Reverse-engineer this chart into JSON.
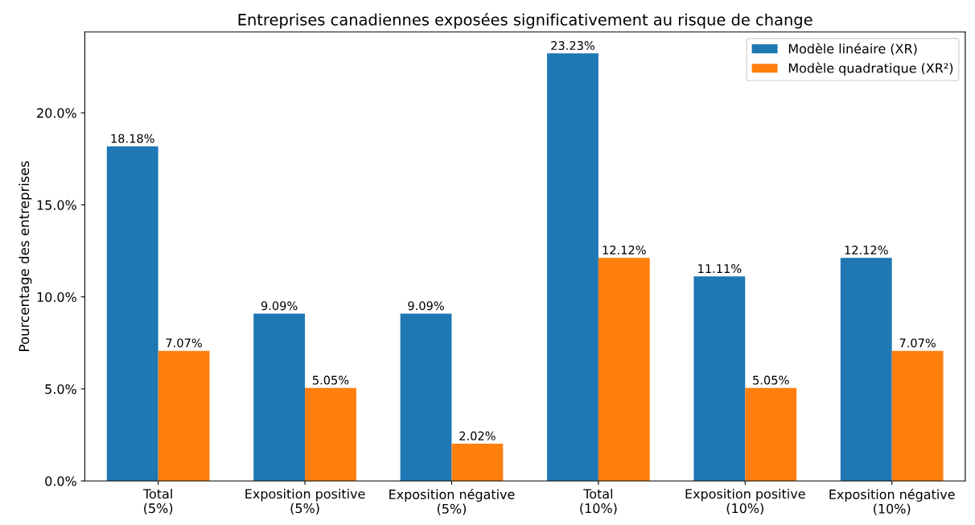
{
  "chart_data": {
    "type": "bar",
    "title": "Entreprises canadiennes exposées significativement au risque de change",
    "ylabel": "Pourcentage des entreprises",
    "categories": [
      "Total\n(5%)",
      "Exposition positive\n(5%)",
      "Exposition négative\n(5%)",
      "Total\n(10%)",
      "Exposition positive\n(10%)",
      "Exposition négative\n(10%)"
    ],
    "series": [
      {
        "name": "Modèle linéaire (XR)",
        "color": "#1f77b4",
        "values": [
          18.18,
          9.09,
          9.09,
          23.23,
          11.11,
          12.12
        ],
        "value_labels": [
          "18.18%",
          "9.09%",
          "9.09%",
          "23.23%",
          "11.11%",
          "12.12%"
        ]
      },
      {
        "name": "Modèle quadratique (XR²)",
        "color": "#ff7f0e",
        "values": [
          7.07,
          5.05,
          2.02,
          12.12,
          5.05,
          7.07
        ],
        "value_labels": [
          "7.07%",
          "5.05%",
          "2.02%",
          "12.12%",
          "5.05%",
          "7.07%"
        ]
      }
    ],
    "ylim": [
      0,
      24.39
    ],
    "yticks": [
      {
        "value": 0,
        "label": "0.0%"
      },
      {
        "value": 5,
        "label": "5.0%"
      },
      {
        "value": 10,
        "label": "10.0%"
      },
      {
        "value": 15,
        "label": "15.0%"
      },
      {
        "value": 20,
        "label": "20.0%"
      }
    ],
    "legend": "top right",
    "grid": false
  }
}
